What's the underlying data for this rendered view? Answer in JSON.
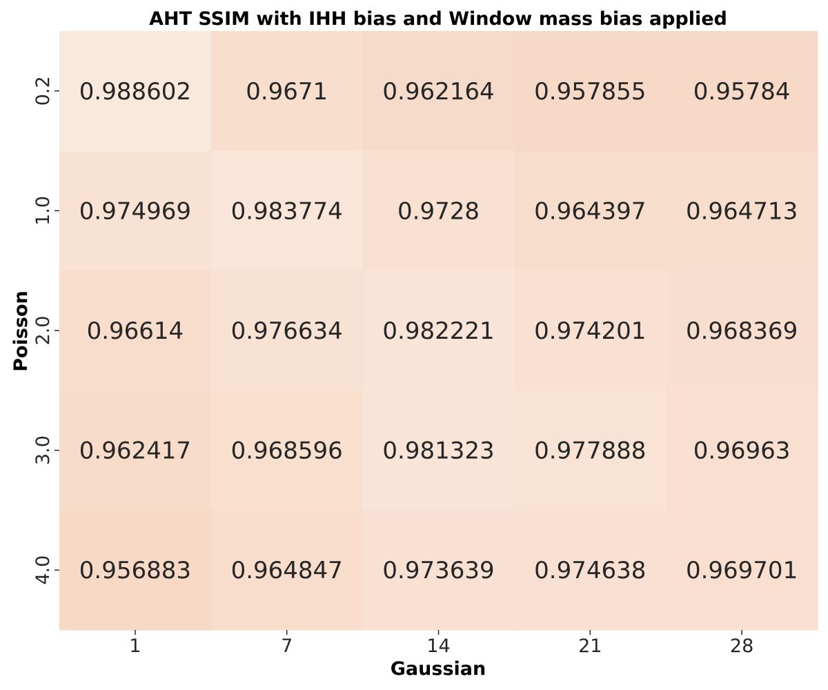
{
  "chart_data": {
    "type": "heatmap",
    "title": "AHT SSIM with IHH bias and Window mass bias applied",
    "xlabel": "Gaussian",
    "ylabel": "Poisson",
    "x": [
      "1",
      "7",
      "14",
      "21",
      "28"
    ],
    "y": [
      "0.2",
      "1.0",
      "2.0",
      "3.0",
      "4.0"
    ],
    "values": [
      [
        0.988602,
        0.9671,
        0.962164,
        0.957855,
        0.95784
      ],
      [
        0.974969,
        0.983774,
        0.9728,
        0.964397,
        0.964713
      ],
      [
        0.96614,
        0.976634,
        0.982221,
        0.974201,
        0.968369
      ],
      [
        0.962417,
        0.968596,
        0.981323,
        0.977888,
        0.96963
      ],
      [
        0.956883,
        0.964847,
        0.973639,
        0.974638,
        0.969701
      ]
    ],
    "cell_labels": [
      [
        "0.988602",
        "0.9671",
        "0.962164",
        "0.957855",
        "0.95784"
      ],
      [
        "0.974969",
        "0.983774",
        "0.9728",
        "0.964397",
        "0.964713"
      ],
      [
        "0.96614",
        "0.976634",
        "0.982221",
        "0.974201",
        "0.968369"
      ],
      [
        "0.962417",
        "0.968596",
        "0.981323",
        "0.977888",
        "0.96963"
      ],
      [
        "0.956883",
        "0.964847",
        "0.973639",
        "0.974638",
        "0.969701"
      ]
    ],
    "color_range": [
      "#f9e8dc",
      "#f7d9c6"
    ],
    "colorbar": false,
    "grid": false
  }
}
